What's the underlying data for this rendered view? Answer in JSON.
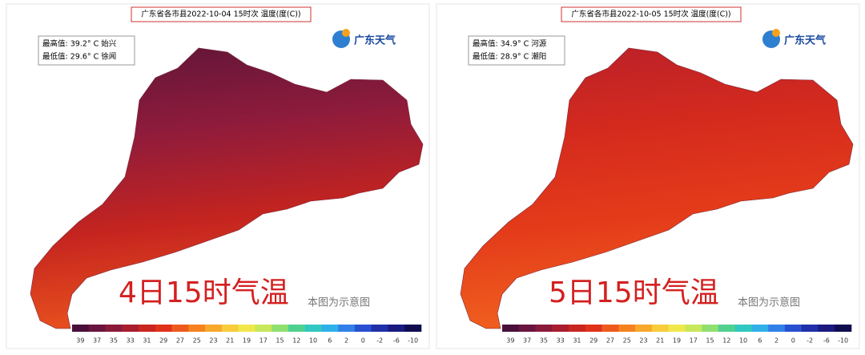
{
  "panels": [
    {
      "title": "广东省各市县2022-10-04 15时次 温度(度(C))",
      "max": "最高值: 39.2° C 始兴",
      "min": "最低值: 29.6° C 徐闻",
      "logo": "广东天气",
      "caption": "4日15时气温",
      "note": "本图为示意图",
      "legend_ticks": [
        39,
        37,
        35,
        33,
        31,
        29,
        27,
        25,
        23,
        21,
        19,
        17,
        15,
        12,
        10,
        6,
        2,
        0,
        -2,
        -6,
        -10
      ],
      "legend_colors": [
        "#4a0f3a",
        "#6a1540",
        "#8a1a3a",
        "#a81e2e",
        "#c8261e",
        "#e0321a",
        "#ee5a1e",
        "#f5821e",
        "#f8a82a",
        "#f8cc3a",
        "#f0e84a",
        "#c8e85a",
        "#90e070",
        "#50d090",
        "#30c8c0",
        "#30b0e8",
        "#3080e8",
        "#2850d0",
        "#2030a8",
        "#1a1a80",
        "#100c50"
      ],
      "map_colors": [
        "#5e1538",
        "#8e1b3c",
        "#c4241f",
        "#e8501e"
      ]
    },
    {
      "title": "广东省各市县2022-10-05 15时次 温度(度(C))",
      "max": "最高值: 34.9° C 河源",
      "min": "最低值: 28.9° C 潮阳",
      "logo": "广东天气",
      "caption": "5日15时气温",
      "note": "本图为示意图",
      "legend_ticks": [
        39,
        37,
        35,
        33,
        31,
        29,
        27,
        25,
        23,
        21,
        19,
        17,
        15,
        12,
        10,
        6,
        2,
        0,
        -2,
        -6,
        -10
      ],
      "legend_colors": [
        "#4a0f3a",
        "#6a1540",
        "#8a1a3a",
        "#a81e2e",
        "#c8261e",
        "#e0321a",
        "#ee5a1e",
        "#f5821e",
        "#f8a82a",
        "#f8cc3a",
        "#f0e84a",
        "#c8e85a",
        "#90e070",
        "#50d090",
        "#30c8c0",
        "#30b0e8",
        "#3080e8",
        "#2850d0",
        "#2030a8",
        "#1a1a80",
        "#100c50"
      ],
      "map_colors": [
        "#b8202a",
        "#d42a1e",
        "#e43c1a",
        "#f0601e"
      ]
    }
  ]
}
